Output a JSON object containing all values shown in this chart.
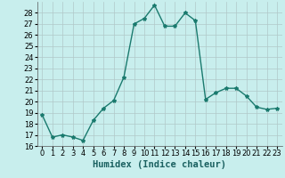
{
  "x": [
    0,
    1,
    2,
    3,
    4,
    5,
    6,
    7,
    8,
    9,
    10,
    11,
    12,
    13,
    14,
    15,
    16,
    17,
    18,
    19,
    20,
    21,
    22,
    23
  ],
  "y": [
    18.8,
    16.8,
    17.0,
    16.8,
    16.5,
    18.3,
    19.4,
    20.1,
    22.2,
    27.0,
    27.5,
    28.7,
    26.8,
    26.8,
    28.0,
    27.3,
    20.2,
    20.8,
    21.2,
    21.2,
    20.5,
    19.5,
    19.3,
    19.4
  ],
  "line_color": "#1a7a6e",
  "marker": "*",
  "marker_size": 3,
  "line_width": 1.0,
  "xlabel": "Humidex (Indice chaleur)",
  "ylim": [
    16,
    29
  ],
  "xlim": [
    -0.5,
    23.5
  ],
  "yticks": [
    16,
    17,
    18,
    19,
    20,
    21,
    22,
    23,
    24,
    25,
    26,
    27,
    28
  ],
  "xticks": [
    0,
    1,
    2,
    3,
    4,
    5,
    6,
    7,
    8,
    9,
    10,
    11,
    12,
    13,
    14,
    15,
    16,
    17,
    18,
    19,
    20,
    21,
    22,
    23
  ],
  "bg_color": "#c8eeed",
  "grid_color": "#b0c8c8",
  "tick_label_fontsize": 6,
  "xlabel_fontsize": 7.5
}
